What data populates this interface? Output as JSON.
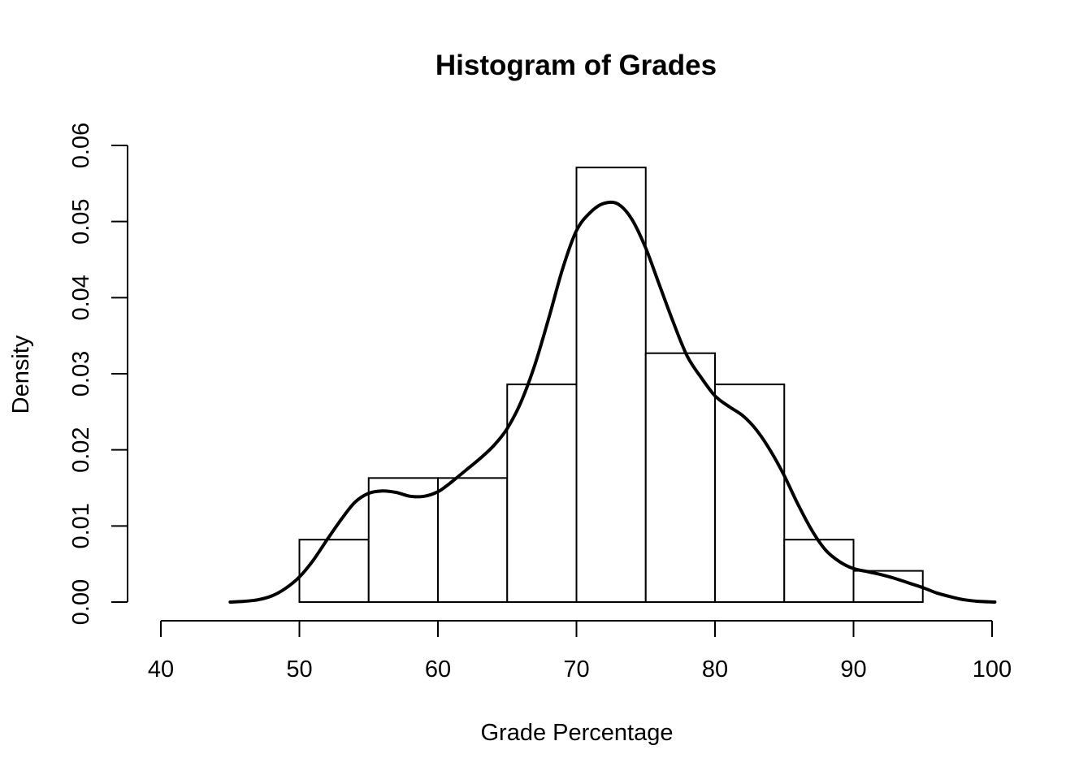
{
  "chart_data": {
    "type": "bar",
    "title": "Histogram of Grades",
    "xlabel": "Grade Percentage",
    "ylabel": "Density",
    "xlim": [
      40,
      100
    ],
    "ylim": [
      0,
      0.06
    ],
    "x_ticks": [
      "40",
      "50",
      "60",
      "70",
      "80",
      "90",
      "100"
    ],
    "y_ticks": [
      "0.00",
      "0.01",
      "0.02",
      "0.03",
      "0.04",
      "0.05",
      "0.06"
    ],
    "bins": [
      {
        "from": 50,
        "to": 55,
        "density": 0.0082
      },
      {
        "from": 55,
        "to": 60,
        "density": 0.0163
      },
      {
        "from": 60,
        "to": 65,
        "density": 0.0163
      },
      {
        "from": 65,
        "to": 70,
        "density": 0.0286
      },
      {
        "from": 70,
        "to": 75,
        "density": 0.0571
      },
      {
        "from": 75,
        "to": 80,
        "density": 0.0327
      },
      {
        "from": 80,
        "to": 85,
        "density": 0.0286
      },
      {
        "from": 85,
        "to": 90,
        "density": 0.0082
      },
      {
        "from": 90,
        "to": 95,
        "density": 0.0041
      }
    ],
    "density_curve": {
      "x": [
        45,
        46,
        47,
        48,
        49,
        50,
        51,
        52,
        53,
        54,
        55,
        56,
        57,
        58,
        59,
        60,
        61,
        62,
        63,
        64,
        65,
        66,
        67,
        68,
        69,
        70,
        71,
        72,
        73,
        74,
        75,
        76,
        77,
        78,
        79,
        80,
        81,
        82,
        83,
        84,
        85,
        86,
        87,
        88,
        89,
        90,
        91,
        92,
        93,
        94,
        95,
        96,
        97,
        98,
        99,
        100.2
      ],
      "y": [
        0.0,
        0.0001,
        0.0003,
        0.0008,
        0.0018,
        0.0033,
        0.0055,
        0.0082,
        0.0108,
        0.0131,
        0.0143,
        0.0146,
        0.0144,
        0.0139,
        0.0139,
        0.0145,
        0.0158,
        0.0173,
        0.0188,
        0.0205,
        0.0228,
        0.0263,
        0.0312,
        0.0373,
        0.0438,
        0.0488,
        0.0512,
        0.0524,
        0.0523,
        0.0503,
        0.0465,
        0.0416,
        0.0367,
        0.0323,
        0.0295,
        0.0271,
        0.0257,
        0.0245,
        0.0226,
        0.0199,
        0.0166,
        0.0128,
        0.0094,
        0.0068,
        0.0053,
        0.0044,
        0.004,
        0.0036,
        0.0031,
        0.0025,
        0.0019,
        0.0012,
        0.0007,
        0.0003,
        0.0001,
        0.0
      ]
    },
    "grid": false,
    "legend": "none"
  }
}
